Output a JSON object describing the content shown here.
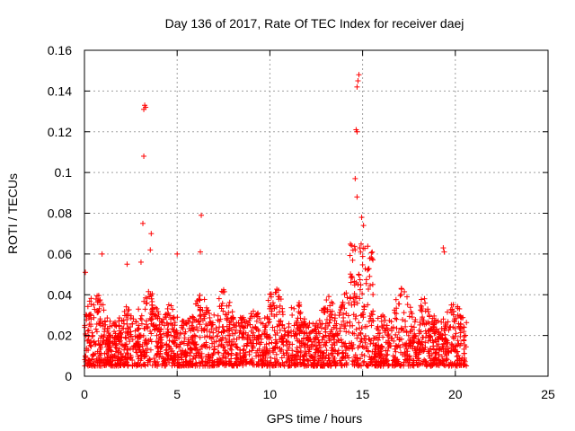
{
  "chart_data": {
    "type": "scatter",
    "title": "Day 136 of 2017, Rate Of TEC Index for receiver daej",
    "xlabel": "GPS time / hours",
    "ylabel": "ROTI / TECUs",
    "xlim": [
      0,
      25
    ],
    "ylim": [
      0,
      0.16
    ],
    "x_ticks": [
      0,
      5,
      10,
      15,
      20,
      25
    ],
    "x_tick_labels": [
      "0",
      "5",
      "10",
      "15",
      "20",
      "25"
    ],
    "y_ticks": [
      0,
      0.02,
      0.04,
      0.06,
      0.08,
      0.1,
      0.12,
      0.14,
      0.16
    ],
    "y_tick_labels": [
      "0",
      "0.02",
      "0.04",
      "0.06",
      "0.08",
      "0.1",
      "0.12",
      "0.14",
      "0.16"
    ],
    "grid": true,
    "marker": "+",
    "color": "#ff0000",
    "data_x_range": [
      0,
      20.6
    ],
    "bulk_band": {
      "min": 0.005,
      "typical_max": 0.045
    },
    "notable_points": [
      {
        "x": 0.05,
        "y": 0.051
      },
      {
        "x": 0.95,
        "y": 0.06
      },
      {
        "x": 2.3,
        "y": 0.055
      },
      {
        "x": 3.05,
        "y": 0.056
      },
      {
        "x": 3.15,
        "y": 0.075
      },
      {
        "x": 3.2,
        "y": 0.108
      },
      {
        "x": 3.2,
        "y": 0.131
      },
      {
        "x": 3.25,
        "y": 0.133
      },
      {
        "x": 3.3,
        "y": 0.132
      },
      {
        "x": 3.6,
        "y": 0.07
      },
      {
        "x": 3.55,
        "y": 0.062
      },
      {
        "x": 6.3,
        "y": 0.079
      },
      {
        "x": 6.25,
        "y": 0.061
      },
      {
        "x": 5.0,
        "y": 0.06
      },
      {
        "x": 14.6,
        "y": 0.097
      },
      {
        "x": 14.65,
        "y": 0.121
      },
      {
        "x": 14.7,
        "y": 0.12
      },
      {
        "x": 14.7,
        "y": 0.142
      },
      {
        "x": 14.75,
        "y": 0.145
      },
      {
        "x": 14.8,
        "y": 0.148
      },
      {
        "x": 14.7,
        "y": 0.088
      },
      {
        "x": 14.95,
        "y": 0.078
      },
      {
        "x": 15.05,
        "y": 0.074
      },
      {
        "x": 19.35,
        "y": 0.063
      },
      {
        "x": 19.4,
        "y": 0.061
      }
    ]
  }
}
